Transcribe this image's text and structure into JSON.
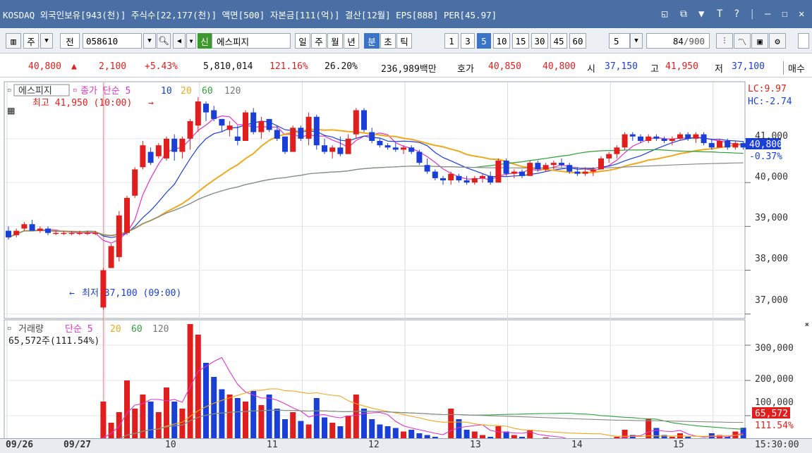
{
  "titlebar": {
    "text": "KOSDAQ 외국인보유[943(천)] 주식수[22,177(천)] 액면[500] 자본금[111(억)] 결산[12월] EPS[888] PER[45.97]",
    "icons": [
      "restore-icon",
      "popup-icon",
      "pin-icon",
      "font-icon",
      "help-icon",
      "minimize-icon",
      "close-icon"
    ]
  },
  "toolbar": {
    "period_select": "주",
    "prev_label": "전",
    "code": "058610",
    "new_badge": "신",
    "stock_name": "에스피지",
    "period_buttons": [
      "일",
      "주",
      "월",
      "년",
      "분",
      "초",
      "틱"
    ],
    "active_period": "분",
    "interval_buttons": [
      "1",
      "3",
      "5",
      "10",
      "15",
      "30",
      "45",
      "60"
    ],
    "active_interval": "5",
    "interval_value": "5",
    "count_value": "84",
    "count_total": "/900"
  },
  "quote": {
    "price": "40,800",
    "change": "2,100",
    "change_pct": "+5.43%",
    "volume": "5,810,014",
    "volume_ratio": "121.16%",
    "turnover": "26.20%",
    "amount": "236,989백만",
    "hoga_label": "호가",
    "ask": "40,850",
    "bid": "40,800",
    "open_label": "시",
    "open": "37,150",
    "high_label": "고",
    "high": "41,950",
    "low_label": "저",
    "low": "37,100",
    "buy_label": "매수"
  },
  "price_panel": {
    "stock_tag": "에스피지",
    "legend_main": "종가 단순 5",
    "ma_labels": [
      "10",
      "20",
      "60",
      "120"
    ],
    "ma_colors": [
      "#e232c8",
      "#1a3fd8",
      "#f0a81c",
      "#2ea038",
      "#8a8a8a"
    ],
    "high_note": "최고 41,950 (10:00)",
    "low_note": "최저 37,100 (09:00)",
    "lc": "LC:9.97",
    "hc": "HC:-2.74",
    "current_price": "40,800",
    "current_pct": "-0.37%",
    "y_ticks": [
      "41,000",
      "40,000",
      "39,000",
      "38,000",
      "37,000"
    ]
  },
  "volume_panel": {
    "title": "거래량",
    "legend_main": "단순 5",
    "ma_labels": [
      "20",
      "60",
      "120"
    ],
    "last_volume": "65,572주(111.54%)",
    "current_volume": "65,572",
    "current_pct": "111.54%",
    "y_ticks": [
      "300,000",
      "200,000",
      "100,000"
    ]
  },
  "x_axis": {
    "labels": [
      "09/26",
      "09/27",
      "10",
      "11",
      "12",
      "13",
      "14",
      "15"
    ],
    "time": "15:30:00"
  },
  "chart_data": {
    "type": "candlestick",
    "ylim": [
      36900,
      42300
    ],
    "volume_ylim": [
      0,
      360000
    ],
    "candles": [
      [
        38900,
        39000,
        38700,
        38750
      ],
      [
        38800,
        38950,
        38750,
        38900
      ],
      [
        38950,
        39100,
        38900,
        39050
      ],
      [
        39050,
        39150,
        38950,
        38900
      ],
      [
        38900,
        39000,
        38850,
        38950
      ],
      [
        38950,
        39000,
        38800,
        38850
      ],
      [
        38850,
        38900,
        38800,
        38850
      ],
      [
        38850,
        38900,
        38800,
        38850
      ],
      [
        38850,
        38900,
        38800,
        38850
      ],
      [
        38850,
        38900,
        38800,
        38850
      ],
      [
        38850,
        38900,
        38800,
        38850
      ],
      [
        38850,
        38900,
        38800,
        38850
      ],
      [
        37150,
        38050,
        37100,
        38000
      ],
      [
        38050,
        38600,
        38050,
        38550
      ],
      [
        38300,
        39350,
        38200,
        39250
      ],
      [
        38850,
        39700,
        38800,
        39650
      ],
      [
        39700,
        40350,
        39650,
        40300
      ],
      [
        40350,
        40950,
        40300,
        40850
      ],
      [
        40700,
        40800,
        40400,
        40450
      ],
      [
        40600,
        40900,
        40550,
        40850
      ],
      [
        40550,
        41050,
        40500,
        41000
      ],
      [
        41000,
        41100,
        40500,
        40700
      ],
      [
        40700,
        41050,
        40550,
        41000
      ],
      [
        41000,
        41450,
        40750,
        41400
      ],
      [
        41300,
        41950,
        41150,
        41850
      ],
      [
        41800,
        41850,
        41400,
        41600
      ],
      [
        41650,
        41750,
        41400,
        41450
      ],
      [
        41450,
        41450,
        41150,
        41300
      ],
      [
        41200,
        41400,
        41050,
        41300
      ],
      [
        41050,
        41300,
        40850,
        40950
      ],
      [
        40950,
        41650,
        40950,
        41600
      ],
      [
        41600,
        41700,
        41100,
        41150
      ],
      [
        41150,
        41500,
        41000,
        41400
      ],
      [
        41450,
        41450,
        41150,
        41200
      ],
      [
        41200,
        41300,
        40950,
        41000
      ],
      [
        41050,
        41050,
        40650,
        40700
      ],
      [
        40700,
        41300,
        40700,
        41250
      ],
      [
        41250,
        41300,
        40950,
        41000
      ],
      [
        41000,
        41600,
        40850,
        41500
      ],
      [
        41500,
        41550,
        40750,
        40850
      ],
      [
        40850,
        41000,
        40650,
        40700
      ],
      [
        40700,
        40850,
        40550,
        40800
      ],
      [
        40800,
        41050,
        40600,
        40650
      ],
      [
        40650,
        41100,
        40650,
        41000
      ],
      [
        41100,
        41700,
        41000,
        41650
      ],
      [
        41650,
        41700,
        41150,
        41200
      ],
      [
        41150,
        41250,
        40900,
        40950
      ],
      [
        40950,
        41000,
        40800,
        40850
      ],
      [
        40850,
        40900,
        40750,
        40800
      ],
      [
        40800,
        40900,
        40700,
        40750
      ],
      [
        40750,
        40850,
        40650,
        40800
      ],
      [
        40800,
        40850,
        40650,
        40700
      ],
      [
        40700,
        40750,
        40400,
        40450
      ],
      [
        40400,
        40550,
        40200,
        40250
      ],
      [
        40250,
        40300,
        40050,
        40100
      ],
      [
        40100,
        40150,
        39950,
        40050
      ],
      [
        40050,
        40250,
        39950,
        40200
      ],
      [
        40150,
        40200,
        40000,
        40050
      ],
      [
        40050,
        40150,
        39950,
        40000
      ],
      [
        40000,
        40150,
        39950,
        40100
      ],
      [
        40100,
        40200,
        40000,
        40150
      ],
      [
        40150,
        40250,
        39950,
        40000
      ],
      [
        40000,
        40550,
        40000,
        40500
      ],
      [
        40500,
        40550,
        40150,
        40200
      ],
      [
        40200,
        40300,
        40100,
        40250
      ],
      [
        40250,
        40300,
        40100,
        40150
      ],
      [
        40150,
        40500,
        40150,
        40450
      ],
      [
        40450,
        40500,
        40250,
        40300
      ],
      [
        40300,
        40450,
        40250,
        40400
      ],
      [
        40400,
        40500,
        40300,
        40450
      ],
      [
        40450,
        40550,
        40350,
        40400
      ],
      [
        40400,
        40450,
        40200,
        40250
      ],
      [
        40250,
        40350,
        40150,
        40200
      ],
      [
        40200,
        40350,
        40150,
        40250
      ],
      [
        40250,
        40350,
        40150,
        40300
      ],
      [
        40300,
        40600,
        40300,
        40550
      ],
      [
        40550,
        40700,
        40450,
        40650
      ],
      [
        40650,
        40850,
        40550,
        40800
      ],
      [
        40800,
        41150,
        40750,
        41100
      ],
      [
        41100,
        41150,
        40950,
        41050
      ],
      [
        41050,
        41100,
        40900,
        40950
      ],
      [
        40950,
        41100,
        40900,
        41050
      ],
      [
        41050,
        41100,
        40950,
        41000
      ],
      [
        41000,
        41050,
        40900,
        40950
      ],
      [
        40950,
        41050,
        40850,
        41000
      ],
      [
        41000,
        41150,
        40950,
        41100
      ],
      [
        41100,
        41150,
        40950,
        41000
      ],
      [
        41000,
        41150,
        40900,
        41100
      ],
      [
        41100,
        41150,
        40850,
        40900
      ],
      [
        40900,
        41000,
        40750,
        40800
      ],
      [
        40800,
        41000,
        40800,
        40950
      ],
      [
        40950,
        41000,
        40750,
        40800
      ],
      [
        40800,
        40950,
        40750,
        40900
      ],
      [
        40900,
        40950,
        40750,
        40800
      ]
    ],
    "volumes": [
      20000,
      22000,
      18000,
      25000,
      15000,
      18000,
      12000,
      16000,
      14000,
      12000,
      10000,
      8000,
      140000,
      80000,
      110000,
      200000,
      120000,
      160000,
      140000,
      110000,
      180000,
      140000,
      120000,
      360000,
      330000,
      250000,
      210000,
      175000,
      160000,
      150000,
      140000,
      170000,
      130000,
      160000,
      120000,
      90000,
      110000,
      85000,
      75000,
      150000,
      95000,
      80000,
      70000,
      100000,
      160000,
      120000,
      90000,
      75000,
      70000,
      65000,
      55000,
      60000,
      50000,
      45000,
      40000,
      35000,
      120000,
      90000,
      60000,
      55000,
      45000,
      40000,
      70000,
      55000,
      45000,
      40000,
      60000,
      35000,
      38000,
      32000,
      30000,
      28000,
      35000,
      30000,
      28000,
      32000,
      35000,
      40000,
      60000,
      45000,
      35000,
      90000,
      65000,
      45000,
      40000,
      50000,
      40000,
      35000,
      30000,
      50000,
      45000,
      40000,
      55000,
      65572
    ]
  }
}
